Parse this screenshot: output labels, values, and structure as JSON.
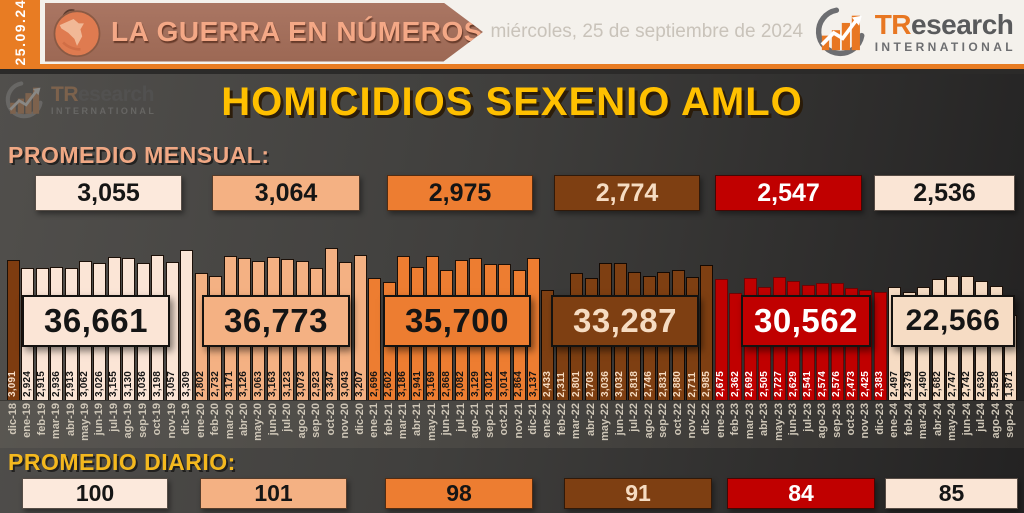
{
  "header": {
    "date_badge": "25.09.24",
    "banner_title": "LA GUERRA EN NÚMEROS",
    "date_line": "miércoles, 25 de septiembre de 2024",
    "brand": {
      "tr": "TR",
      "rest": "esearch",
      "subtitle": "INTERNATIONAL"
    }
  },
  "watermark": {
    "tr": "TR",
    "rest": "esearch",
    "subtitle": "INTERNATIONAL"
  },
  "chart_title": "HOMICIDIOS SEXENIO AMLO",
  "promedio_mensual": {
    "label": "PROMEDIO MENSUAL:",
    "values": [
      "3,055",
      "3,064",
      "2,975",
      "2,774",
      "2,547",
      "2,536"
    ]
  },
  "promedio_diario": {
    "label": "PROMEDIO DIARIO:",
    "values": [
      "100",
      "101",
      "98",
      "91",
      "84",
      "85"
    ]
  },
  "colors": {
    "accent_orange": "#e87c23",
    "banner_brown": "#9c6854",
    "title_yellow": "#ffc000",
    "label_salmon": "#f0a884",
    "cream_2019": "#fbe5d6",
    "salmon_2020": "#f4b183",
    "orange_2021": "#ed7d31",
    "brown_2022": "#7e3f12",
    "red_2023": "#c00000",
    "cream_2024": "#f6dcc4",
    "dark_dic18": "#7e3c10"
  },
  "chart_data": {
    "type": "bar",
    "title": "HOMICIDIOS SEXENIO AMLO",
    "xlabel": "",
    "ylabel": "",
    "ylim": [
      0,
      3500
    ],
    "grid": false,
    "legend": false,
    "x": [
      "dic-18",
      "ene-19",
      "feb-19",
      "mar-19",
      "abr-19",
      "may-19",
      "jun-19",
      "jul-19",
      "ago-19",
      "sep-19",
      "oct-19",
      "nov-19",
      "dic-19",
      "ene-20",
      "feb-20",
      "mar-20",
      "abr-20",
      "may-20",
      "jun-20",
      "jul-20",
      "ago-20",
      "sep-20",
      "oct-20",
      "nov-20",
      "dic-20",
      "ene-21",
      "feb-21",
      "mar-21",
      "abr-21",
      "may-21",
      "jun-21",
      "jul-21",
      "ago-21",
      "sep-21",
      "oct-21",
      "nov-21",
      "dic-21",
      "ene-22",
      "feb-22",
      "mar-22",
      "abr-22",
      "may-22",
      "jun-22",
      "jul-22",
      "ago-22",
      "sep-22",
      "oct-22",
      "nov-22",
      "dic-22",
      "ene-23",
      "feb-23",
      "mar-23",
      "abr-23",
      "may-23",
      "jun-23",
      "jul-23",
      "ago-23",
      "sep-23",
      "oct-23",
      "nov-23",
      "dic-23",
      "ene-24",
      "feb-24",
      "mar-24",
      "abr-24",
      "may-24",
      "jun-24",
      "jul-24",
      "ago-24",
      "sep-24"
    ],
    "values": [
      3091,
      2924,
      2915,
      2936,
      2913,
      3062,
      3026,
      3155,
      3130,
      3036,
      3198,
      3057,
      3309,
      2802,
      2732,
      3171,
      3126,
      3063,
      3163,
      3123,
      3073,
      2923,
      3347,
      3043,
      3207,
      2696,
      2602,
      3186,
      2941,
      3169,
      2868,
      3082,
      3129,
      3012,
      3014,
      2864,
      3137,
      2433,
      2311,
      2801,
      2703,
      3036,
      3032,
      2818,
      2746,
      2831,
      2880,
      2711,
      2985,
      2675,
      2362,
      2692,
      2505,
      2727,
      2629,
      2541,
      2574,
      2576,
      2473,
      2425,
      2383,
      2497,
      2379,
      2490,
      2682,
      2747,
      2742,
      2630,
      2528,
      1871
    ],
    "bar_group": [
      0,
      1,
      1,
      1,
      1,
      1,
      1,
      1,
      1,
      1,
      1,
      1,
      1,
      2,
      2,
      2,
      2,
      2,
      2,
      2,
      2,
      2,
      2,
      2,
      2,
      3,
      3,
      3,
      3,
      3,
      3,
      3,
      3,
      3,
      3,
      3,
      3,
      4,
      4,
      4,
      4,
      4,
      4,
      4,
      4,
      4,
      4,
      4,
      4,
      5,
      5,
      5,
      5,
      5,
      5,
      5,
      5,
      5,
      5,
      5,
      5,
      6,
      6,
      6,
      6,
      6,
      6,
      6,
      6,
      6
    ],
    "groups": [
      {
        "name": "dic-18",
        "color": "#7e3c10",
        "border": "#1c1008",
        "text_color": "#f6ddc8"
      },
      {
        "name": "2019",
        "color": "#fbe5d6",
        "border": "#1c1008",
        "text_color": "#151515",
        "total": "36,661",
        "monthly_avg": "3,055",
        "daily_avg": "100"
      },
      {
        "name": "2020",
        "color": "#f4b183",
        "border": "#1c1008",
        "text_color": "#151515",
        "total": "36,773",
        "monthly_avg": "3,064",
        "daily_avg": "101"
      },
      {
        "name": "2021",
        "color": "#ed7d31",
        "border": "#1c1008",
        "text_color": "#151515",
        "total": "35,700",
        "monthly_avg": "2,975",
        "daily_avg": "98"
      },
      {
        "name": "2022",
        "color": "#7e3f12",
        "border": "#140902",
        "text_color": "#f6dcc2",
        "total": "33,287",
        "monthly_avg": "2,774",
        "daily_avg": "91"
      },
      {
        "name": "2023",
        "color": "#c00000",
        "border": "#6e0404",
        "text_color": "#ffffff",
        "total": "30,562",
        "monthly_avg": "2,547",
        "daily_avg": "84"
      },
      {
        "name": "2024",
        "color": "#f6dcc4",
        "border": "#1c1008",
        "text_color": "#151515",
        "total": "22,566",
        "monthly_avg": "2,536",
        "daily_avg": "85"
      }
    ]
  }
}
